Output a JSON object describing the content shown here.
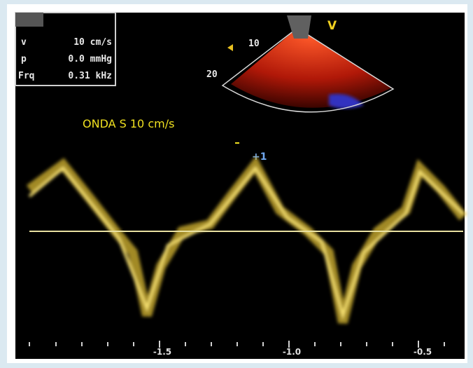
{
  "info_box": {
    "rows": [
      [
        "v",
        "10 cm/s"
      ],
      [
        "p",
        "0.0 mmHg"
      ],
      [
        "Frq",
        "0.31 kHz"
      ]
    ]
  },
  "sector": {
    "labels": [
      "10",
      "20"
    ],
    "view_marker": "V"
  },
  "annotation": "ONDA S 10 cm/s",
  "cursor_label": "+1",
  "time_axis": {
    "labels": [
      "-1.5",
      "-1.0",
      "-0.5"
    ]
  }
}
